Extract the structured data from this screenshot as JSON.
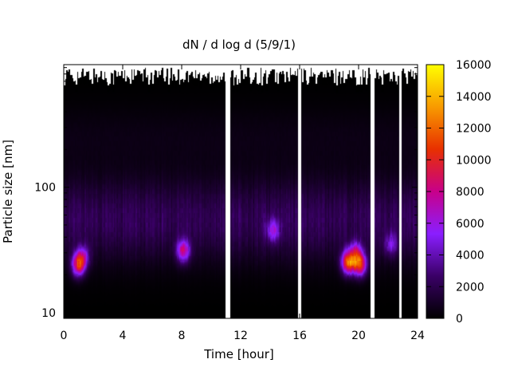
{
  "chart_data": {
    "type": "heatmap",
    "title": "dN / d log d (5/9/1)",
    "xlabel": "Time [hour]",
    "ylabel": "Particle size [nm]",
    "xlim": [
      0,
      24
    ],
    "ylim": [
      9,
      950
    ],
    "y_scale": "log",
    "x_ticks": [
      0,
      4,
      8,
      12,
      16,
      20,
      24
    ],
    "y_ticks": [
      10,
      100
    ],
    "colorbar": {
      "range": [
        0,
        16000
      ],
      "ticks": [
        0,
        2000,
        4000,
        6000,
        8000,
        10000,
        12000,
        14000,
        16000
      ],
      "colormap": [
        "#000000",
        "#3a0066",
        "#8a1eff",
        "#c8008a",
        "#e83000",
        "#f89a00",
        "#ffff00"
      ]
    },
    "data_gaps_hours": [
      [
        11.0,
        11.3
      ],
      [
        15.9,
        16.1
      ],
      [
        20.8,
        21.1
      ],
      [
        22.75,
        22.9
      ]
    ],
    "blobs": [
      {
        "t": 1.0,
        "d": 24,
        "value": 9000
      },
      {
        "t": 1.3,
        "d": 28,
        "value": 4500
      },
      {
        "t": 8.1,
        "d": 31,
        "value": 7000
      },
      {
        "t": 14.2,
        "d": 45,
        "value": 4200
      },
      {
        "t": 19.3,
        "d": 25,
        "value": 11000
      },
      {
        "t": 20.1,
        "d": 24,
        "value": 9500
      },
      {
        "t": 19.8,
        "d": 30,
        "value": 6000
      },
      {
        "t": 22.2,
        "d": 35,
        "value": 3500
      }
    ]
  }
}
